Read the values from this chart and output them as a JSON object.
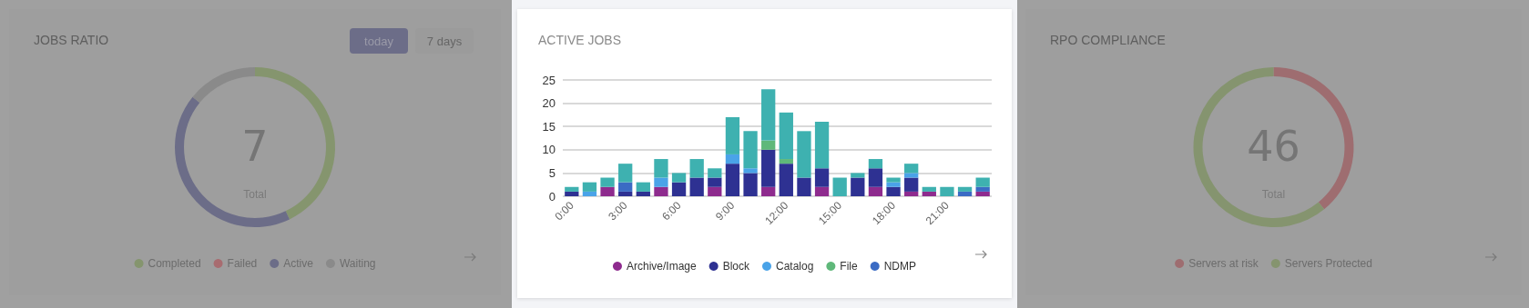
{
  "chart_data": [
    {
      "type": "donut",
      "title": "JOBS RATIO",
      "categories": [
        "Completed",
        "Failed",
        "Active",
        "Waiting"
      ],
      "values": [
        42.9,
        0,
        42.9,
        14.2
      ],
      "colors": [
        "#85956e",
        "#a86c70",
        "#6c6d88",
        "#8a8a8a"
      ],
      "legend": "bottom",
      "annotations": [
        "7",
        "Total",
        "today",
        "7 days"
      ]
    },
    {
      "type": "bar",
      "title": "ACTIVE JOBS",
      "stacked": true,
      "categories": [
        "0:00",
        null,
        null,
        "3:00",
        null,
        null,
        "6:00",
        null,
        null,
        "9:00",
        null,
        null,
        "12:00",
        null,
        null,
        "15:00",
        null,
        null,
        "18:00",
        null,
        null,
        "21:00",
        null,
        null
      ],
      "series": [
        {
          "name": "Archive/Image",
          "color": "#8e2b8e",
          "values": [
            0,
            0,
            2,
            0,
            0,
            2,
            0,
            0,
            2,
            0,
            0,
            2,
            0,
            0,
            2,
            0,
            0,
            2,
            0,
            1,
            1,
            0,
            0,
            1
          ]
        },
        {
          "name": "Block",
          "color": "#2e3192",
          "values": [
            1,
            0,
            0,
            1,
            1,
            0,
            3,
            4,
            2,
            7,
            5,
            8,
            7,
            4,
            4,
            0,
            4,
            4,
            2,
            3,
            0,
            0,
            0,
            0
          ]
        },
        {
          "name": "Catalog",
          "color": "#4aa3e8",
          "values": [
            0,
            1,
            0,
            0,
            0,
            2,
            0,
            0,
            0,
            2,
            1,
            0,
            0,
            0,
            0,
            0,
            0,
            0,
            1,
            1,
            0,
            0,
            0,
            0
          ]
        },
        {
          "name": "File",
          "color": "#5fb87a",
          "values": [
            0,
            0,
            0,
            0,
            0,
            0,
            0,
            0,
            0,
            0,
            0,
            2,
            1,
            0,
            0,
            0,
            0,
            0,
            0,
            0,
            0,
            0,
            0,
            0
          ]
        },
        {
          "name": "NDMP",
          "color": "#3b6bc4",
          "values": [
            0,
            0,
            0,
            2,
            0,
            0,
            0,
            0,
            0,
            0,
            0,
            0,
            0,
            0,
            0,
            0,
            0,
            0,
            0,
            0,
            0,
            0,
            1,
            1
          ]
        },
        {
          "color": "#3eb1b0",
          "values": [
            1,
            2,
            2,
            4,
            2,
            4,
            2,
            4,
            2,
            8,
            8,
            11,
            10,
            10,
            10,
            4,
            1,
            2,
            1,
            2,
            1,
            2,
            1,
            2
          ]
        }
      ],
      "ylim": [
        0,
        25
      ],
      "yticks": [
        0,
        5,
        10,
        15,
        20,
        25
      ],
      "grid": "y",
      "legend": "bottom"
    },
    {
      "type": "donut",
      "title": "RPO COMPLIANCE",
      "categories": [
        "Servers at risk",
        "Servers Protected"
      ],
      "values": [
        39.1,
        60.9
      ],
      "colors": [
        "#9e6d70",
        "#85946f"
      ],
      "legend": "bottom",
      "annotations": [
        "46",
        "Total"
      ]
    }
  ]
}
